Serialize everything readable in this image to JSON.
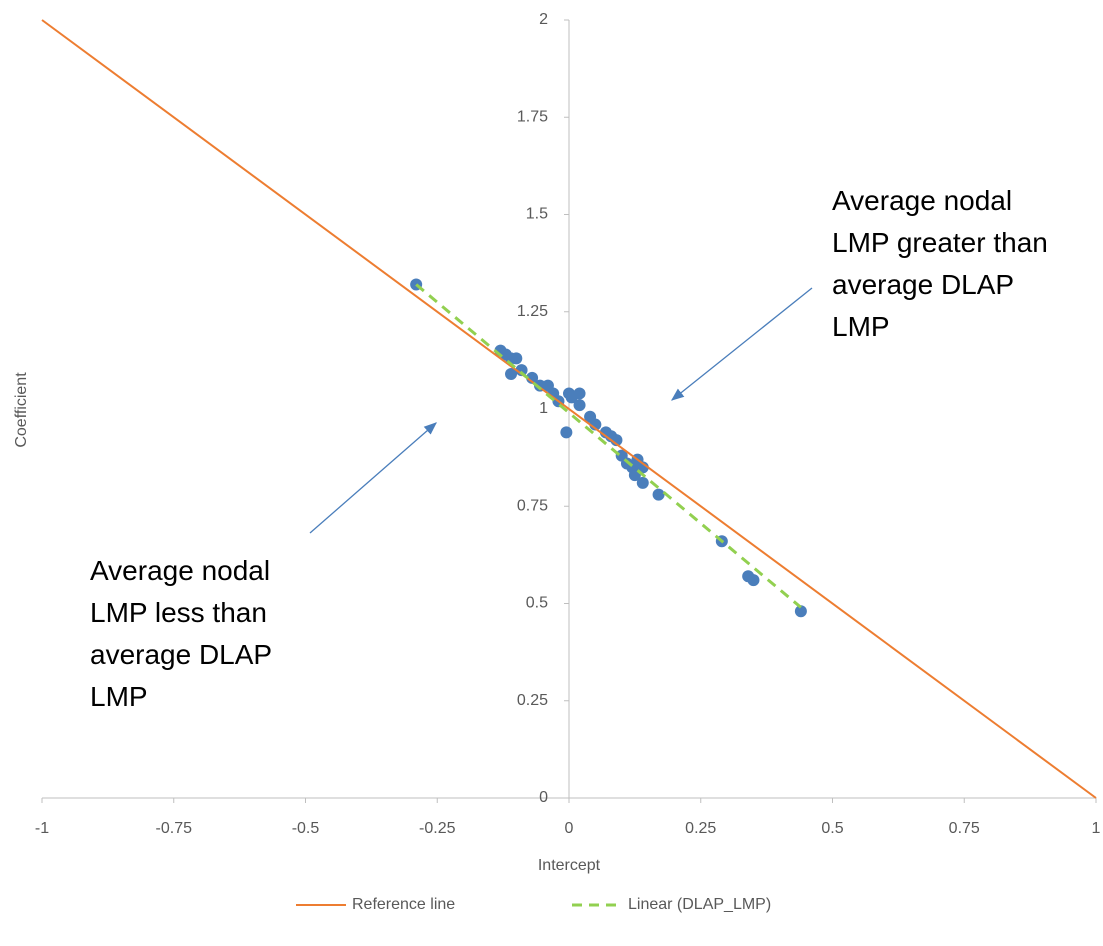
{
  "chart_data": {
    "type": "scatter",
    "x_label": "Intercept",
    "y_label": "Coefficient",
    "xlim": [
      -1,
      1
    ],
    "ylim": [
      0,
      2
    ],
    "xticks": [
      -1,
      -0.75,
      -0.5,
      -0.25,
      0,
      0.25,
      0.5,
      0.75,
      1
    ],
    "yticks": [
      0,
      0.25,
      0.5,
      0.75,
      1,
      1.25,
      1.5,
      1.75,
      2
    ],
    "series": [
      {
        "type": "scatter",
        "color": "#4a7ebb",
        "x": [
          -0.29,
          -0.13,
          -0.12,
          -0.11,
          -0.1,
          -0.11,
          -0.09,
          -0.07,
          -0.055,
          -0.04,
          -0.03,
          -0.02,
          -0.005,
          0,
          0.005,
          0.02,
          0.02,
          0.04,
          0.05,
          0.07,
          0.08,
          0.09,
          0.1,
          0.11,
          0.12,
          0.13,
          0.14,
          0.125,
          0.14,
          0.17,
          0.29,
          0.34,
          0.35,
          0.44
        ],
        "values": [
          1.32,
          1.15,
          1.14,
          1.13,
          1.13,
          1.09,
          1.1,
          1.08,
          1.06,
          1.06,
          1.04,
          1.02,
          0.94,
          1.04,
          1.03,
          1.04,
          1.01,
          0.98,
          0.96,
          0.94,
          0.93,
          0.92,
          0.88,
          0.86,
          0.85,
          0.87,
          0.85,
          0.83,
          0.81,
          0.78,
          0.66,
          0.57,
          0.56,
          0.48
        ]
      },
      {
        "type": "line",
        "name": "Reference line",
        "color": "#ed7d31",
        "x": [
          -1,
          1
        ],
        "values": [
          2,
          0
        ]
      },
      {
        "type": "line",
        "name": "Linear (DLAP_LMP)",
        "color": "#92d050",
        "dashed": true,
        "x": [
          -0.29,
          0.44
        ],
        "values": [
          1.32,
          0.49
        ]
      }
    ],
    "annotations": [
      {
        "lines": [
          "Average nodal",
          "LMP greater than",
          "average DLAP",
          "LMP"
        ]
      },
      {
        "lines": [
          "Average nodal",
          "LMP less than",
          "average DLAP",
          "LMP"
        ]
      }
    ]
  }
}
